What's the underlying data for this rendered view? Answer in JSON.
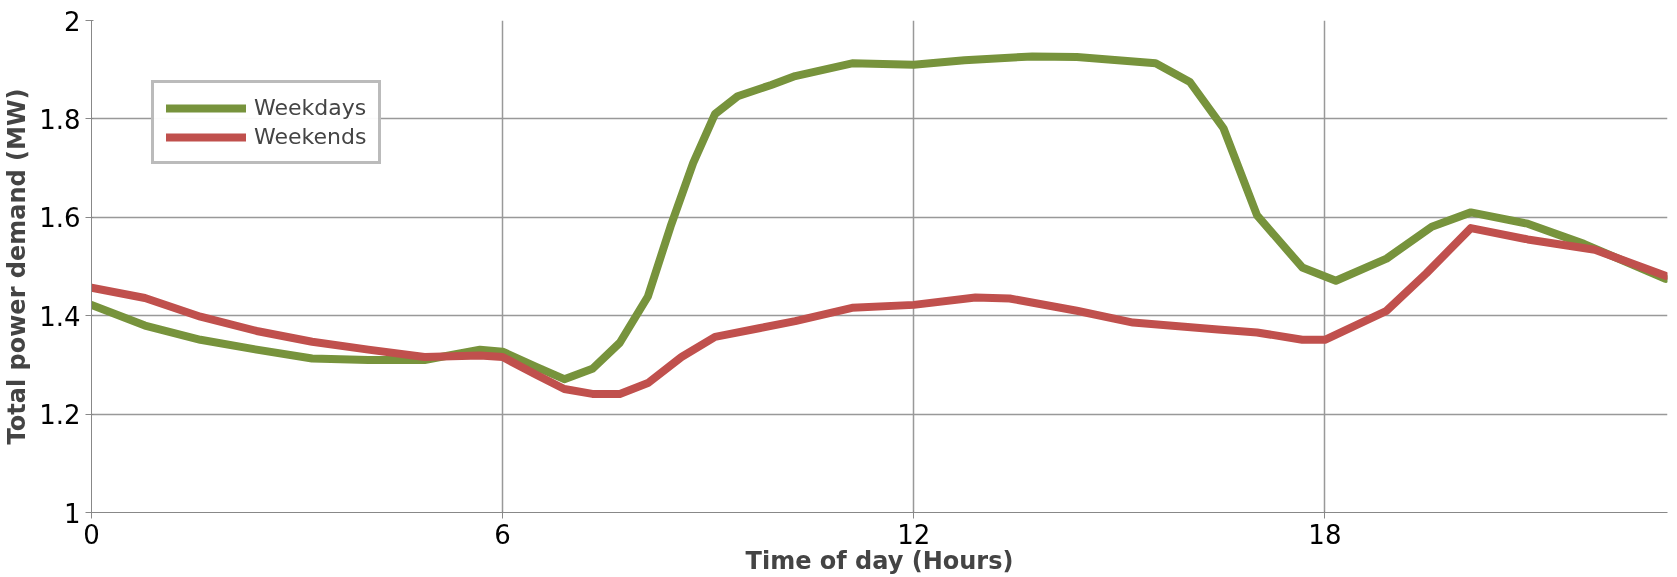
{
  "chart_data": {
    "type": "line",
    "xlabel": "Time of day (Hours)",
    "ylabel": "Total power demand (MW)",
    "xlim": [
      0,
      23
    ],
    "xticks": [
      0,
      6,
      12,
      18
    ],
    "ylim": [
      1,
      2
    ],
    "yticks": [
      1,
      1.2,
      1.4,
      1.6,
      1.8,
      2
    ],
    "grid": true,
    "legend": "top left",
    "marker": "none",
    "line_style": "solid",
    "series": [
      {
        "name": "Weekdays",
        "color": "#77933c",
        "x": [
          0,
          0.78,
          1.59,
          2.41,
          3.22,
          4.04,
          4.86,
          5.67,
          6.0,
          6.49,
          6.9,
          7.31,
          7.71,
          8.12,
          8.45,
          8.78,
          9.1,
          9.43,
          9.92,
          10.27,
          11.1,
          12,
          12.74,
          13.73,
          14.38,
          15.53,
          16.03,
          16.52,
          17.01,
          17.67,
          18.16,
          18.9,
          19.56,
          20.13,
          20.96,
          21.78,
          22.97
        ],
        "values": [
          1.422,
          1.38,
          1.351,
          1.331,
          1.313,
          1.31,
          1.31,
          1.331,
          1.327,
          1.296,
          1.271,
          1.292,
          1.345,
          1.439,
          1.581,
          1.71,
          1.81,
          1.846,
          1.869,
          1.887,
          1.913,
          1.91,
          1.919,
          1.927,
          1.926,
          1.913,
          1.875,
          1.781,
          1.604,
          1.498,
          1.471,
          1.516,
          1.581,
          1.61,
          1.587,
          1.546,
          1.475
        ]
      },
      {
        "name": "Weekends",
        "color": "#c0504d",
        "x": [
          0,
          0.78,
          1.59,
          2.41,
          3.22,
          4.04,
          4.86,
          5.67,
          6.0,
          6.49,
          6.9,
          7.31,
          7.71,
          8.12,
          8.61,
          9.1,
          9.76,
          10.27,
          11.1,
          12,
          12.9,
          13.4,
          14.38,
          15.2,
          16.44,
          17.01,
          17.67,
          18.0,
          18.9,
          19.48,
          20.13,
          20.96,
          21.94,
          22.97
        ],
        "values": [
          1.457,
          1.436,
          1.398,
          1.369,
          1.347,
          1.331,
          1.316,
          1.319,
          1.316,
          1.28,
          1.251,
          1.241,
          1.241,
          1.263,
          1.316,
          1.357,
          1.375,
          1.389,
          1.416,
          1.422,
          1.437,
          1.435,
          1.41,
          1.386,
          1.372,
          1.366,
          1.351,
          1.351,
          1.41,
          1.486,
          1.578,
          1.555,
          1.534,
          1.481
        ]
      }
    ]
  }
}
